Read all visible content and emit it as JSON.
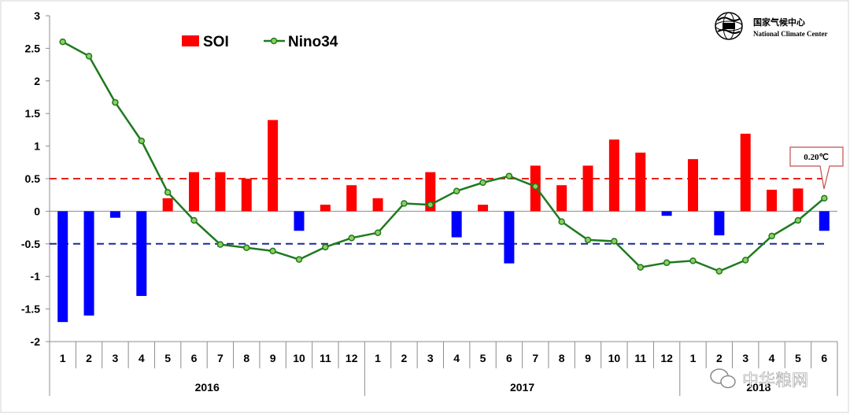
{
  "chart_data": {
    "type": "bar+line",
    "title": "",
    "x_tick_labels": [
      "1",
      "2",
      "3",
      "4",
      "5",
      "6",
      "7",
      "8",
      "9",
      "10",
      "11",
      "12",
      "1",
      "2",
      "3",
      "4",
      "5",
      "6",
      "7",
      "8",
      "9",
      "10",
      "11",
      "12",
      "1",
      "2",
      "3",
      "4",
      "5",
      "6"
    ],
    "years": [
      {
        "label": "2016",
        "start_index": 0,
        "end_index": 11
      },
      {
        "label": "2017",
        "start_index": 12,
        "end_index": 23
      },
      {
        "label": "2018",
        "start_index": 24,
        "end_index": 29
      }
    ],
    "y_ticks": [
      "3",
      "2.5",
      "2",
      "1.5",
      "1",
      "0.5",
      "0",
      "-0.5",
      "-1",
      "-1.5",
      "-2"
    ],
    "ylim": [
      -2,
      3
    ],
    "series": [
      {
        "name": "SOI",
        "kind": "bar",
        "values": [
          -1.7,
          -1.6,
          -0.1,
          -1.3,
          0.2,
          0.6,
          0.6,
          0.5,
          1.4,
          -0.3,
          0.1,
          0.4,
          0.2,
          0.0,
          0.6,
          -0.4,
          0.1,
          -0.8,
          0.7,
          0.4,
          0.7,
          1.1,
          0.9,
          -0.07,
          0.8,
          -0.37,
          1.19,
          0.33,
          0.35,
          -0.3
        ]
      },
      {
        "name": "Nino34",
        "kind": "line",
        "values": [
          2.6,
          2.38,
          1.67,
          1.08,
          0.29,
          -0.14,
          -0.51,
          -0.56,
          -0.61,
          -0.74,
          -0.55,
          -0.41,
          -0.33,
          0.12,
          0.1,
          0.31,
          0.44,
          0.54,
          0.38,
          -0.16,
          -0.44,
          -0.46,
          -0.86,
          -0.79,
          -0.76,
          -0.92,
          -0.75,
          -0.38,
          -0.14,
          0.2
        ]
      }
    ],
    "reference_lines": [
      {
        "value": 0.5,
        "color": "#e8231b",
        "style": "dashed"
      },
      {
        "value": -0.5,
        "color": "#1a2a9c",
        "style": "dashed"
      }
    ],
    "legend": {
      "position": "top-left",
      "entries": [
        "SOI",
        "Nino34"
      ]
    },
    "annotation": {
      "text": "0.20℃",
      "point_index": 29
    }
  },
  "logo": {
    "cn": "国家气候中心",
    "en": "National Climate Center"
  },
  "watermark": {
    "text": "中华粮网"
  },
  "colors": {
    "positive_bar": "#ff0000",
    "negative_bar": "#0000ff",
    "line": "#1f7a1f",
    "marker": "#8fcf60"
  }
}
